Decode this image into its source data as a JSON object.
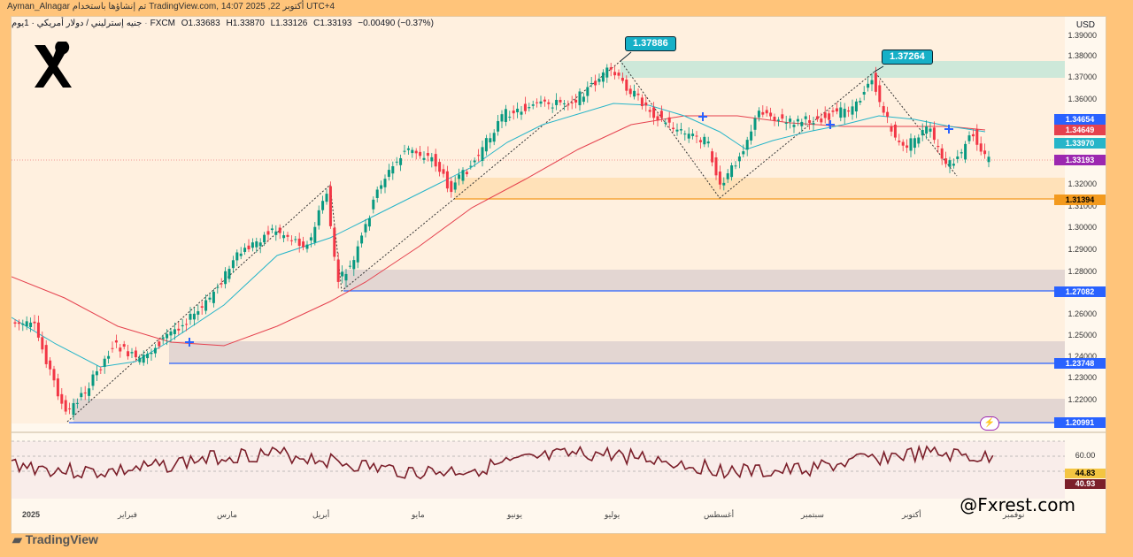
{
  "topbar": {
    "text": "Ayman_Alnagar تم إنشاؤها باستخدام TradingView.com, أكتوبر 22, 2025 14:07 UTC+4"
  },
  "symbol": {
    "name": "جنيه إسترليني / دولار أمريكي · 1يوم",
    "exchange": "FXCM",
    "open": "O1.33683",
    "high": "H1.33870",
    "low": "L1.33126",
    "close": "C1.33193",
    "change": "−0.00490 (−0.37%)"
  },
  "axis": {
    "currency": "USD"
  },
  "price_ticks": [
    "1.39000",
    "1.38000",
    "1.37000",
    "1.36000",
    "1.32000",
    "1.31000",
    "1.30000",
    "1.29000",
    "1.28000",
    "1.26000",
    "1.25000",
    "1.24000",
    "1.23000",
    "1.22000"
  ],
  "price_tags": {
    "t1": "1.34654",
    "t2": "1.34649",
    "t3": "1.33970",
    "t4": "1.33193",
    "t5": "1.31394",
    "t6": "1.27082",
    "t7": "1.23748",
    "t8": "1.20991"
  },
  "callouts": {
    "high1": "1.37886",
    "high2": "1.37264"
  },
  "rsi": {
    "level": "60.00",
    "v1": "44.83",
    "v2": "40.93"
  },
  "months": [
    "2025",
    "فبراير",
    "مارس",
    "أبريل",
    "مايو",
    "يونيو",
    "يوليو",
    "أغسطس",
    "سبتمبر",
    "أكتوبر",
    "نوفمبر"
  ],
  "watermark": "@Fxrest.com",
  "footer": {
    "brand": "TradingView"
  },
  "colors": {
    "up": "#089981",
    "down": "#f23645",
    "ema_fast": "#26b5c9",
    "ema_slow": "#e5414e",
    "support_zone": "#d0cbd6",
    "orange_zone": "#ffe1b3",
    "teal_zone": "#cde8d9",
    "rsi_line": "#7b1f2a"
  }
}
